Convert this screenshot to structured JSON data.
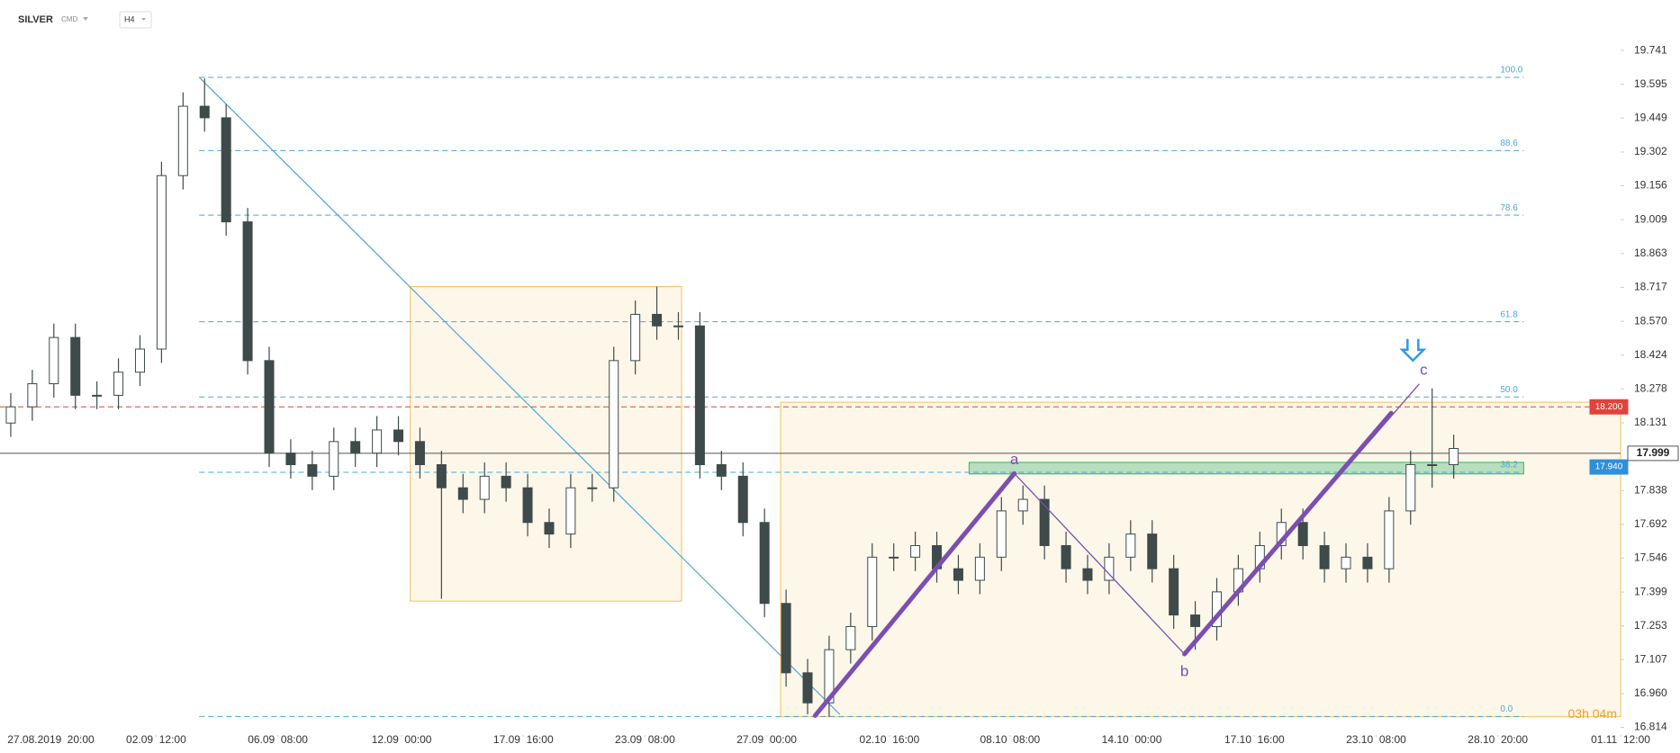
{
  "header": {
    "symbol": "SILVER",
    "market": "CMD",
    "interval": "H4"
  },
  "chart_data": {
    "type": "candlestick",
    "x": [
      2,
      6,
      10,
      14,
      18,
      22,
      26,
      30,
      34,
      38,
      42,
      46,
      50,
      54,
      58,
      62,
      66,
      70,
      74,
      78,
      82,
      86,
      90,
      94,
      98,
      102,
      106,
      110,
      114,
      118,
      122,
      126,
      130,
      134,
      138,
      142,
      146,
      150,
      154,
      158,
      162,
      166,
      170,
      174,
      178,
      182,
      186,
      190,
      194,
      198,
      202,
      206,
      210,
      214,
      218,
      222,
      226,
      230,
      234,
      238,
      242,
      246,
      250,
      254,
      258,
      262,
      266,
      270
    ],
    "open": [
      18.13,
      18.2,
      18.3,
      18.5,
      18.25,
      18.25,
      18.35,
      18.45,
      19.2,
      19.5,
      19.45,
      19.0,
      18.4,
      18.0,
      17.95,
      17.9,
      18.05,
      18.0,
      18.1,
      18.05,
      17.95,
      17.85,
      17.8,
      17.9,
      17.85,
      17.7,
      17.65,
      17.85,
      17.85,
      18.4,
      18.6,
      18.55,
      18.55,
      17.95,
      17.9,
      17.7,
      17.35,
      17.05,
      16.92,
      17.15,
      17.25,
      17.55,
      17.55,
      17.6,
      17.5,
      17.45,
      17.55,
      17.75,
      17.8,
      17.6,
      17.5,
      17.45,
      17.55,
      17.65,
      17.5,
      17.3,
      17.25,
      17.4,
      17.5,
      17.6,
      17.7,
      17.6,
      17.5,
      17.55,
      17.5,
      17.75,
      17.95,
      17.95
    ],
    "high": [
      18.26,
      18.36,
      18.56,
      18.56,
      18.31,
      18.41,
      18.51,
      19.26,
      19.56,
      19.62,
      19.51,
      19.06,
      18.46,
      18.06,
      18.01,
      18.11,
      18.11,
      18.16,
      18.16,
      18.11,
      18.01,
      17.91,
      17.96,
      17.96,
      17.91,
      17.76,
      17.91,
      17.91,
      18.46,
      18.66,
      18.72,
      18.61,
      18.61,
      18.01,
      17.96,
      17.76,
      17.41,
      17.11,
      17.21,
      17.31,
      17.61,
      17.61,
      17.66,
      17.66,
      17.56,
      17.61,
      17.81,
      17.86,
      17.86,
      17.66,
      17.56,
      17.61,
      17.71,
      17.71,
      17.56,
      17.36,
      17.46,
      17.56,
      17.66,
      17.76,
      17.76,
      17.66,
      17.61,
      17.61,
      17.81,
      18.01,
      18.28,
      18.08
    ],
    "low": [
      18.07,
      18.14,
      18.24,
      18.19,
      18.19,
      18.19,
      18.29,
      18.39,
      19.14,
      19.39,
      18.94,
      18.34,
      17.94,
      17.89,
      17.84,
      17.84,
      17.94,
      17.94,
      17.99,
      17.89,
      17.37,
      17.74,
      17.74,
      17.79,
      17.64,
      17.59,
      17.59,
      17.79,
      17.79,
      18.34,
      18.49,
      18.49,
      17.89,
      17.84,
      17.64,
      17.29,
      16.99,
      16.87,
      16.86,
      17.09,
      17.19,
      17.49,
      17.49,
      17.44,
      17.39,
      17.39,
      17.49,
      17.69,
      17.54,
      17.44,
      17.39,
      17.39,
      17.49,
      17.44,
      17.24,
      17.15,
      17.19,
      17.34,
      17.44,
      17.54,
      17.54,
      17.44,
      17.44,
      17.44,
      17.44,
      17.69,
      17.85,
      17.89
    ],
    "close": [
      18.2,
      18.3,
      18.5,
      18.25,
      18.25,
      18.35,
      18.45,
      19.2,
      19.5,
      19.45,
      19.0,
      18.4,
      18.0,
      17.95,
      17.9,
      18.05,
      18.0,
      18.1,
      18.05,
      17.95,
      17.85,
      17.8,
      17.9,
      17.85,
      17.7,
      17.65,
      17.85,
      17.85,
      18.4,
      18.6,
      18.55,
      18.55,
      17.95,
      17.9,
      17.7,
      17.35,
      17.05,
      16.92,
      17.15,
      17.25,
      17.55,
      17.55,
      17.6,
      17.5,
      17.45,
      17.55,
      17.75,
      17.8,
      17.6,
      17.5,
      17.45,
      17.55,
      17.65,
      17.5,
      17.3,
      17.25,
      17.4,
      17.5,
      17.6,
      17.7,
      17.6,
      17.5,
      17.55,
      17.5,
      17.75,
      17.95,
      17.95,
      18.02
    ],
    "up_color": "#ffffff",
    "down_color": "#3f4a4a",
    "wick_color": "#3f4a4a",
    "xlim": [
      0,
      301
    ],
    "ylim": [
      16.781,
      19.936
    ],
    "xticks": [
      {
        "value": 6.4,
        "label": "27.08.2019"
      },
      {
        "value": 15,
        "label": "20:00"
      },
      {
        "value": 29,
        "label": "02.09  12:00"
      },
      {
        "value": 51.6,
        "label": "06.09  08:00"
      },
      {
        "value": 74.6,
        "label": "12.09  00:00"
      },
      {
        "value": 97.2,
        "label": "17.09  16:00"
      },
      {
        "value": 119.8,
        "label": "23.09  08:00"
      },
      {
        "value": 142.4,
        "label": "27.09  00:00"
      },
      {
        "value": 165.2,
        "label": "02.10  16:00"
      },
      {
        "value": 187.6,
        "label": "08.10  08:00"
      },
      {
        "value": 210.2,
        "label": "14.10  00:00"
      },
      {
        "value": 233,
        "label": "17.10  16:00"
      },
      {
        "value": 255.6,
        "label": "23.10  08:00"
      },
      {
        "value": 278.2,
        "label": "28.10  20:00"
      },
      {
        "value": 301,
        "label": "01.11  12:00"
      }
    ],
    "yticks": [
      19.741,
      19.595,
      19.449,
      19.302,
      19.156,
      19.009,
      18.863,
      18.717,
      {
        "value": 18.57,
        "label": "18.570"
      },
      18.424,
      18.278,
      18.131,
      17.838,
      17.692,
      17.546,
      17.399,
      17.253,
      17.107,
      {
        "value": 16.96,
        "label": "16.960"
      },
      16.814
    ],
    "fib_levels": [
      {
        "level": "100.0",
        "price": 19.625
      },
      {
        "level": "88.6",
        "price": 19.308
      },
      {
        "level": "78.6",
        "price": 19.029
      },
      {
        "level": "61.8",
        "price": 18.568
      },
      {
        "level": "50.0",
        "price": 18.243
      },
      {
        "level": "38.2",
        "price": 17.917
      },
      {
        "level": "0.0",
        "price": 16.861
      }
    ],
    "fib_x": [
      37,
      283
    ],
    "fib_color": "#4aa8d8",
    "price_lines": [
      {
        "label": "18.200",
        "value": 18.2,
        "color": "#e0433a",
        "style": "dashed"
      },
      {
        "label": "17.940",
        "value": 17.94,
        "color": "#2f8fd8",
        "style": "none"
      },
      {
        "label": "17.999",
        "value": 17.999,
        "color": "#555555",
        "style": "solid"
      }
    ],
    "boxes": [
      {
        "x": [
          76.2,
          126.6
        ],
        "y": [
          17.36,
          18.72
        ],
        "color": "#f2c25a"
      },
      {
        "x": [
          145,
          301
        ],
        "y": [
          16.86,
          18.22
        ],
        "color": "#f2c25a"
      },
      {
        "x": [
          180,
          283
        ],
        "y": [
          17.91,
          17.96
        ],
        "color": "#35b36a"
      }
    ],
    "trend_line": {
      "x": [
        37,
        156
      ],
      "y": [
        19.625,
        16.87
      ],
      "color": "#4aa8d8"
    },
    "impulse_lines": [
      {
        "x": [
          151.4,
          188.4
        ],
        "y": [
          16.865,
          17.912
        ]
      },
      {
        "x": [
          220,
          258.4
        ],
        "y": [
          17.131,
          18.173
        ]
      }
    ],
    "wave_points": [
      {
        "label": "a",
        "x": 188.4,
        "y": 17.912
      },
      {
        "label": "b",
        "x": 220,
        "y": 17.131
      },
      {
        "label": "c",
        "x": 263.6,
        "y": 18.299
      }
    ],
    "wave_color": "#7b4fb0",
    "timer": "03h 04m"
  }
}
